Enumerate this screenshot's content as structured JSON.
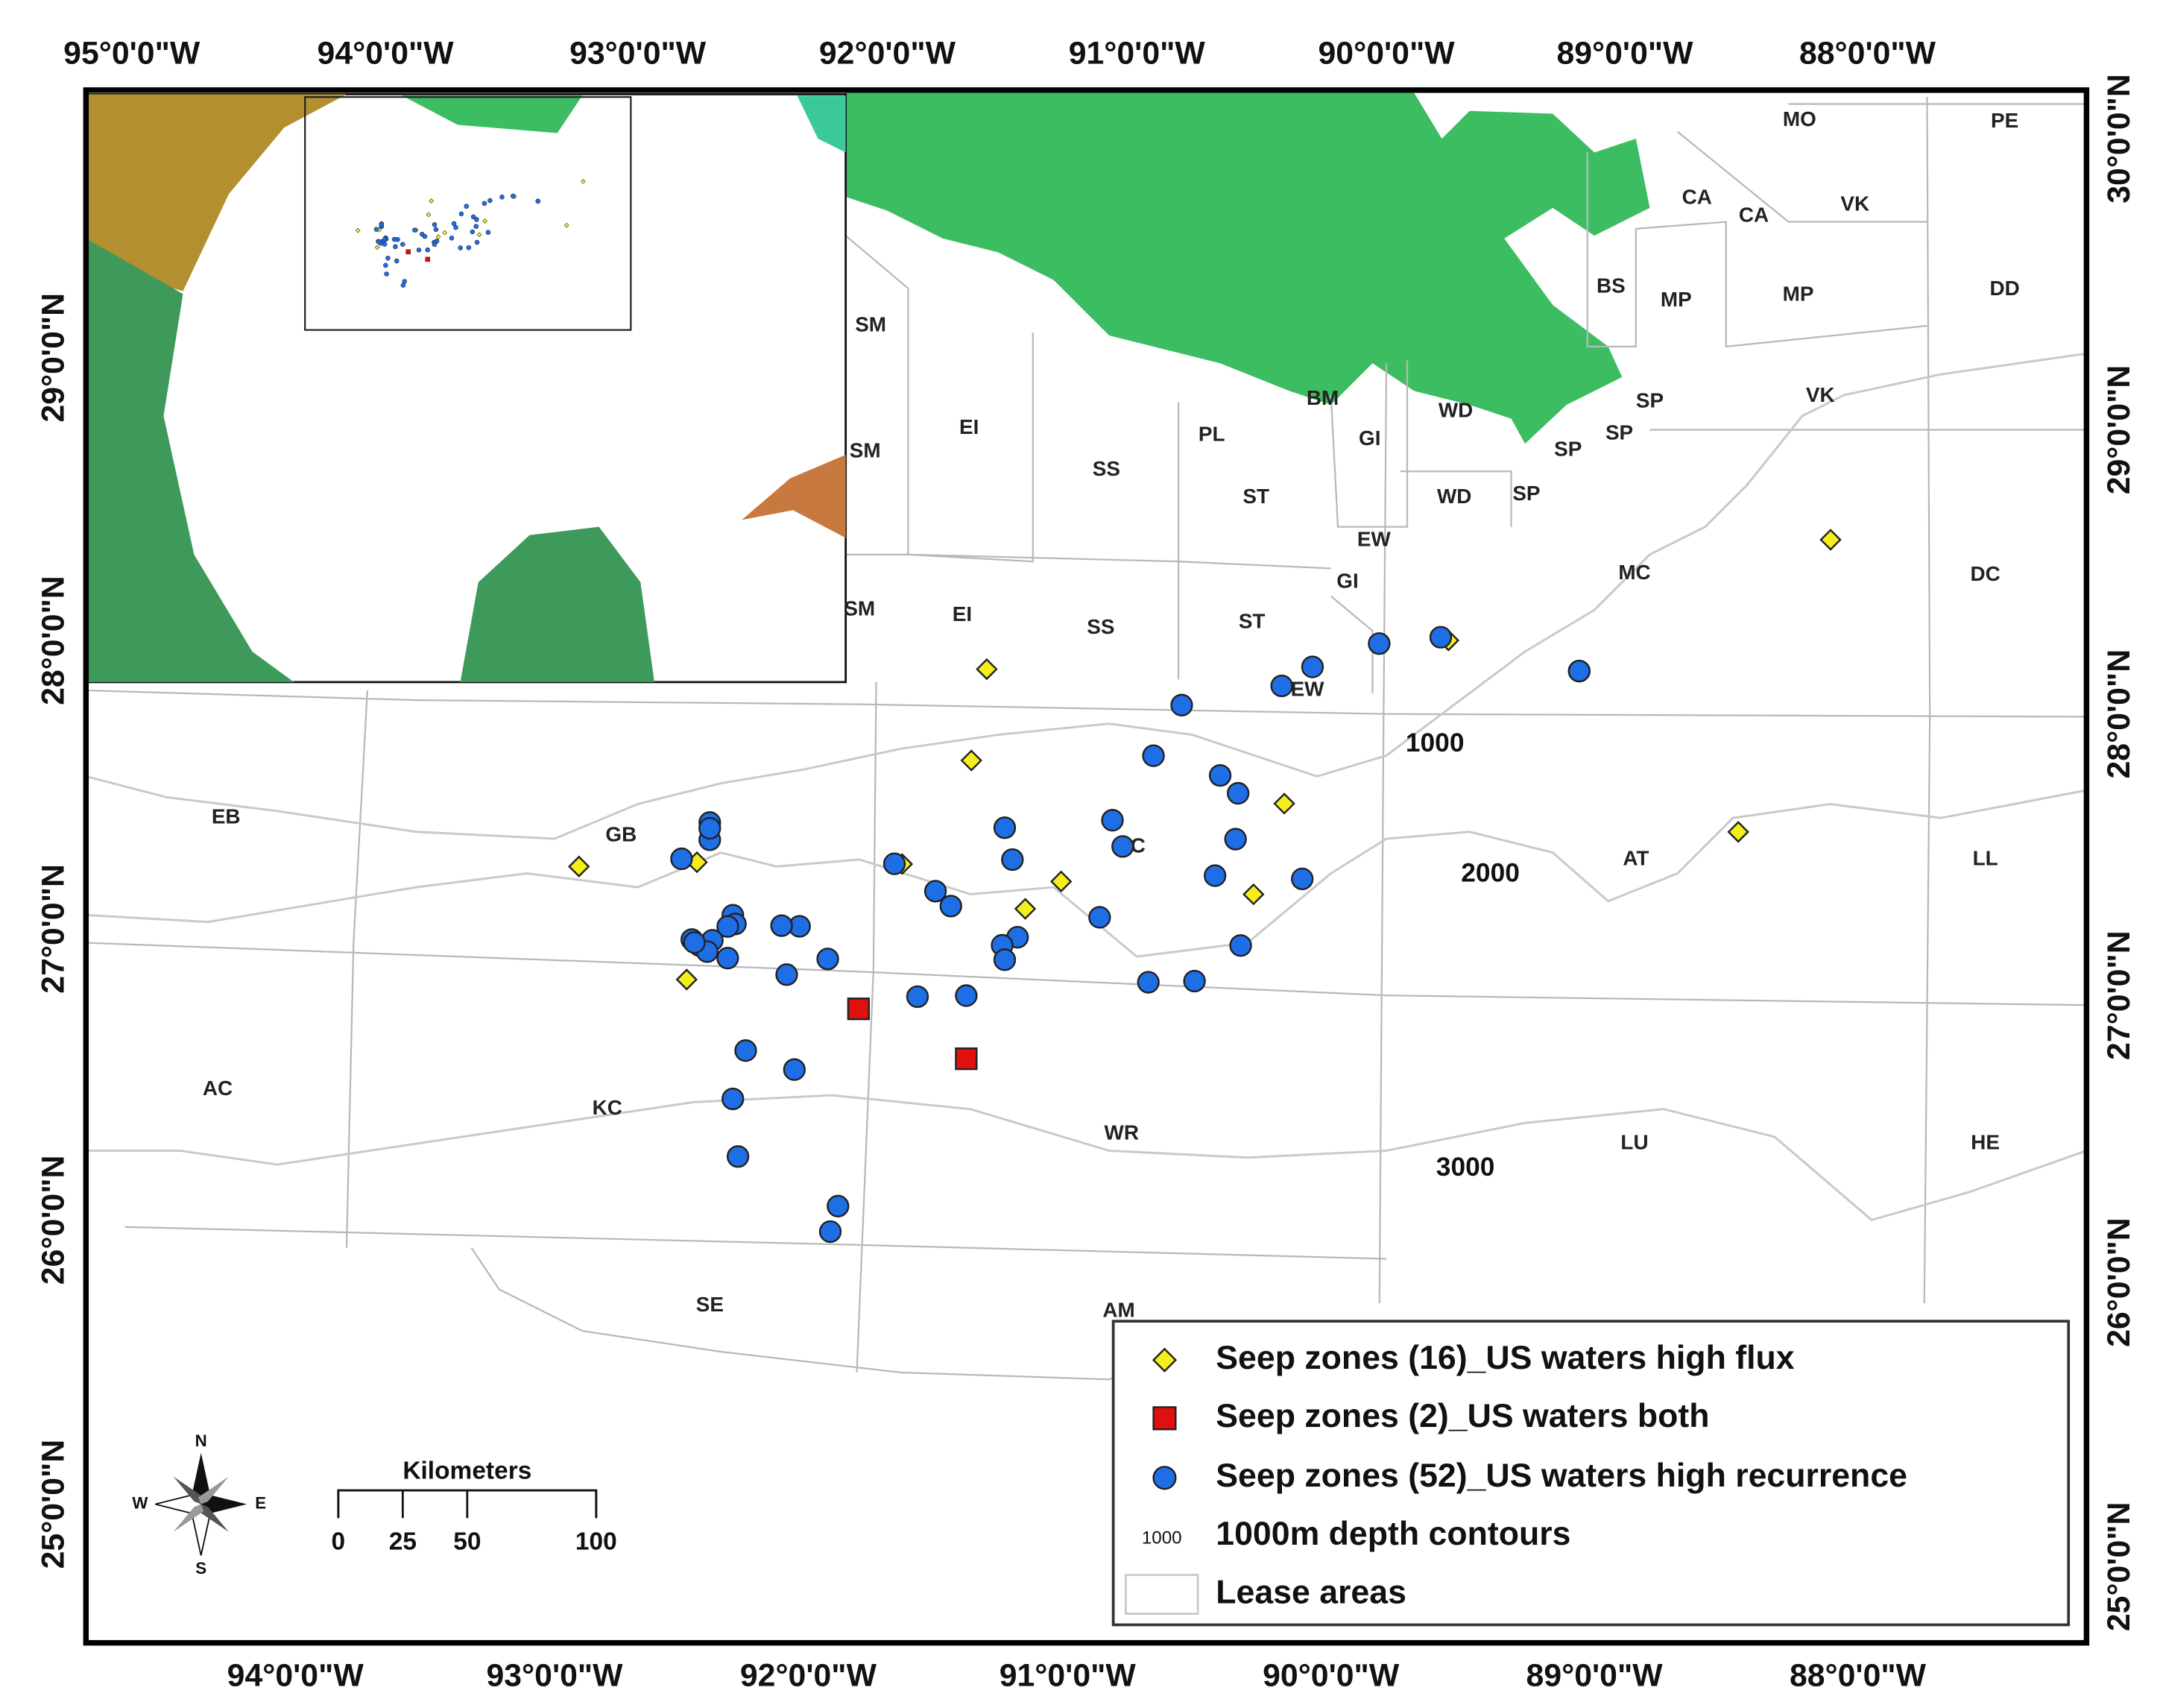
{
  "axes": {
    "top": [
      "95°0'0\"W",
      "94°0'0\"W",
      "93°0'0\"W",
      "92°0'0\"W",
      "91°0'0\"W",
      "90°0'0\"W",
      "89°0'0\"W",
      "88°0'0\"W"
    ],
    "bottom": [
      "94°0'0\"W",
      "93°0'0\"W",
      "92°0'0\"W",
      "91°0'0\"W",
      "90°0'0\"W",
      "89°0'0\"W",
      "88°0'0\"W"
    ],
    "left": [
      "29°0'0\"N",
      "28°0'0\"N",
      "27°0'0\"N",
      "26°0'0\"N",
      "25°0'0\"N"
    ],
    "right": [
      "30°0'0\"N",
      "29°0'0\"N",
      "28°0'0\"N",
      "27°0'0\"N",
      "26°0'0\"N",
      "25°0'0\"N"
    ]
  },
  "lease_areas": [
    "SM",
    "SM",
    "SM",
    "EI",
    "EI",
    "SS",
    "SS",
    "PL",
    "ST",
    "ST",
    "BM",
    "GI",
    "GI",
    "WD",
    "WD",
    "EW",
    "EW",
    "SP",
    "SP",
    "SP",
    "SP",
    "BS",
    "MP",
    "MP",
    "CA",
    "CA",
    "MO",
    "PE",
    "VK",
    "VK",
    "DD",
    "MC",
    "DC",
    "GC",
    "AT",
    "LL",
    "EB",
    "GB",
    "AC",
    "KC",
    "WR",
    "LU",
    "HE",
    "SE",
    "AM"
  ],
  "contour_labels": [
    1000,
    2000,
    3000
  ],
  "series": [
    {
      "name": "Seep zones (16)_US waters high flux",
      "marker": "diamond",
      "color": "#f4ee1c",
      "lon": [
        -91.45,
        -91.51,
        -89.65,
        -90.29,
        -91.16,
        -91.3,
        -90.41,
        -93.04,
        -92.58,
        -92.62,
        -88.52,
        -88.16,
        -91.78,
        -90.92,
        -90.3,
        -92.53
      ],
      "lat": [
        28.02,
        27.7,
        28.18,
        27.59,
        27.29,
        27.19,
        27.27,
        27.28,
        27.31,
        26.9,
        27.55,
        28.58,
        27.33,
        27.42,
        28.0,
        27.39
      ]
    },
    {
      "name": "Seep zones (2)_US waters both",
      "marker": "square",
      "color": "#e0100e",
      "lon": [
        -91.95,
        -91.53
      ],
      "lat": [
        26.82,
        26.66
      ]
    },
    {
      "name": "Seep zones (52)_US waters high recurrence",
      "marker": "circle",
      "color": "#1e6ee6",
      "lon": [
        -89.92,
        -89.68,
        -90.18,
        -90.3,
        -89.14,
        -90.69,
        -90.8,
        -90.54,
        -90.47,
        -90.96,
        -90.92,
        -90.48,
        -90.56,
        -90.22,
        -91.38,
        -91.35,
        -91.81,
        -91.65,
        -91.59,
        -91.01,
        -91.33,
        -91.39,
        -91.38,
        -90.46,
        -90.64,
        -90.82,
        -91.53,
        -91.72,
        -92.07,
        -92.23,
        -92.18,
        -92.25,
        -92.44,
        -92.43,
        -92.46,
        -92.53,
        -92.53,
        -92.64,
        -92.6,
        -92.57,
        -92.52,
        -92.54,
        -92.46,
        -92.39,
        -92.2,
        -92.44,
        -92.42,
        -92.03,
        -92.06,
        -92.53,
        -92.59,
        -89.14
      ],
      "lat": [
        28.16,
        28.19,
        28.07,
        28.0,
        28.09,
        27.92,
        27.74,
        27.68,
        27.62,
        27.51,
        27.42,
        27.46,
        27.33,
        27.33,
        27.47,
        27.36,
        27.33,
        27.24,
        27.19,
        27.17,
        27.09,
        27.06,
        27.01,
        27.09,
        26.96,
        26.95,
        26.88,
        26.87,
        26.99,
        26.93,
        27.1,
        27.1,
        27.13,
        27.1,
        27.09,
        27.45,
        27.39,
        27.32,
        27.04,
        27.02,
        27.04,
        27.0,
        26.98,
        26.66,
        26.6,
        26.49,
        26.29,
        26.13,
        26.04,
        27.43,
        27.03,
        28.09
      ]
    }
  ],
  "legend": {
    "contour_sample": 1000,
    "contour_name": "1000m depth contours",
    "lease_name": "Lease areas"
  },
  "scale_bar": {
    "title": "Kilometers",
    "ticks": [
      0,
      25,
      50,
      100
    ]
  },
  "compass": {
    "n": "N",
    "e": "E",
    "s": "S",
    "w": "W"
  }
}
